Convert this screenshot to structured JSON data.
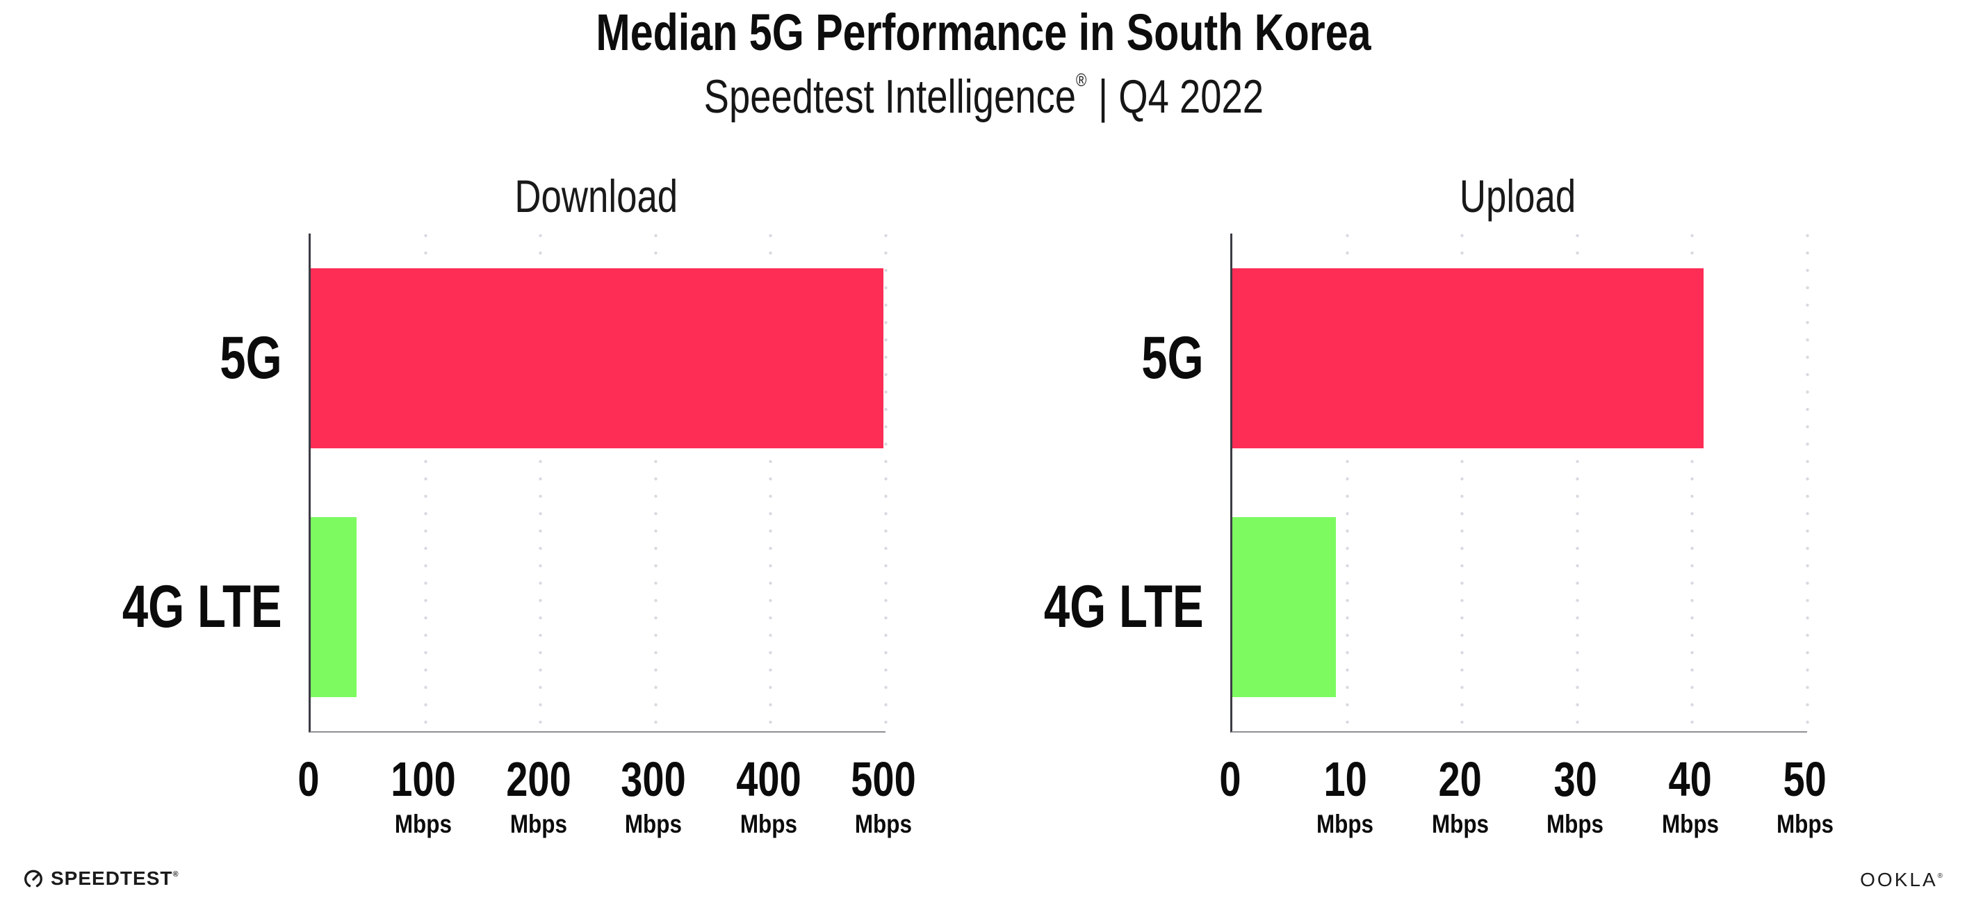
{
  "header": {
    "title": "Median 5G Performance in South Korea",
    "subtitle_brand": "Speedtest Intelligence",
    "subtitle_reg": "®",
    "subtitle_rest": " | Q4 2022"
  },
  "footer": {
    "speedtest_label": "SPEEDTEST",
    "speedtest_reg": "®",
    "ookla_label": "OOKLA",
    "ookla_reg": "®"
  },
  "colors": {
    "bar_5g": "#FD2D55",
    "bar_4g": "#7CFA60",
    "y_axis": "#3C3C46",
    "x_axis": "#909095",
    "gridline": "#D9D9E1",
    "text": "#0d0d0d"
  },
  "chart_data": {
    "type": "bar",
    "orientation": "horizontal",
    "categories": [
      "5G",
      "4G LTE"
    ],
    "series_colors": {
      "5G": "#FD2D55",
      "4G LTE": "#7CFA60"
    },
    "grid": "dotted-vertical",
    "legend": "none",
    "charts": [
      {
        "title": "Download",
        "unit": "Mbps",
        "xlim": [
          0,
          500
        ],
        "ticks": [
          0,
          100,
          200,
          300,
          400,
          500
        ],
        "values": [
          498,
          40
        ]
      },
      {
        "title": "Upload",
        "unit": "Mbps",
        "xlim": [
          0,
          50
        ],
        "ticks": [
          0,
          10,
          20,
          30,
          40,
          50
        ],
        "values": [
          41,
          9
        ]
      }
    ]
  }
}
